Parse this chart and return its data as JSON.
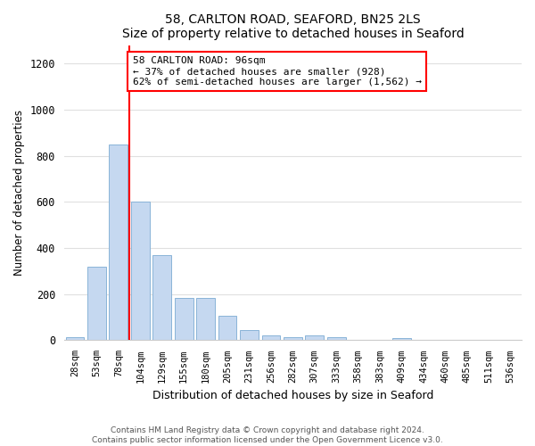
{
  "title": "58, CARLTON ROAD, SEAFORD, BN25 2LS",
  "subtitle": "Size of property relative to detached houses in Seaford",
  "xlabel": "Distribution of detached houses by size in Seaford",
  "ylabel": "Number of detached properties",
  "categories": [
    "28sqm",
    "53sqm",
    "78sqm",
    "104sqm",
    "129sqm",
    "155sqm",
    "180sqm",
    "205sqm",
    "231sqm",
    "256sqm",
    "282sqm",
    "307sqm",
    "333sqm",
    "358sqm",
    "383sqm",
    "409sqm",
    "434sqm",
    "460sqm",
    "485sqm",
    "511sqm",
    "536sqm"
  ],
  "values": [
    12,
    320,
    850,
    600,
    370,
    185,
    185,
    105,
    45,
    22,
    15,
    20,
    15,
    0,
    0,
    10,
    0,
    0,
    0,
    0,
    0
  ],
  "bar_color": "#c5d8f0",
  "bar_edge_color": "#8ab4d8",
  "vline_color": "red",
  "annotation_text": "58 CARLTON ROAD: 96sqm\n← 37% of detached houses are smaller (928)\n62% of semi-detached houses are larger (1,562) →",
  "annotation_box_color": "white",
  "annotation_box_edge": "red",
  "ylim": [
    0,
    1280
  ],
  "yticks": [
    0,
    200,
    400,
    600,
    800,
    1000,
    1200
  ],
  "footer_line1": "Contains HM Land Registry data © Crown copyright and database right 2024.",
  "footer_line2": "Contains public sector information licensed under the Open Government Licence v3.0.",
  "bg_color": "#ffffff",
  "plot_bg_color": "#ffffff",
  "grid_color": "#e0e0e0"
}
